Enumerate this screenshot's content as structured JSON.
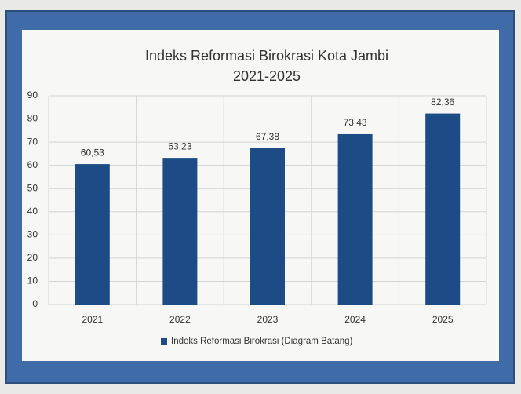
{
  "chart_data": {
    "type": "bar",
    "title": "Indeks Reformasi Birokrasi Kota Jambi",
    "subtitle": "2021-2025",
    "categories": [
      "2021",
      "2022",
      "2023",
      "2024",
      "2025"
    ],
    "series": [
      {
        "name": "Indeks Reformasi Birokrasi (Diagram Batang)",
        "color": "#1d4b85",
        "values": [
          60.53,
          63.23,
          67.38,
          73.43,
          82.36
        ],
        "value_labels": [
          "60,53",
          "63,23",
          "67,38",
          "73,43",
          "82,36"
        ]
      }
    ],
    "ylim": [
      0,
      90
    ],
    "yticks": [
      0,
      10,
      20,
      30,
      40,
      50,
      60,
      70,
      80,
      90
    ],
    "grid": true,
    "legend": "bottom"
  }
}
